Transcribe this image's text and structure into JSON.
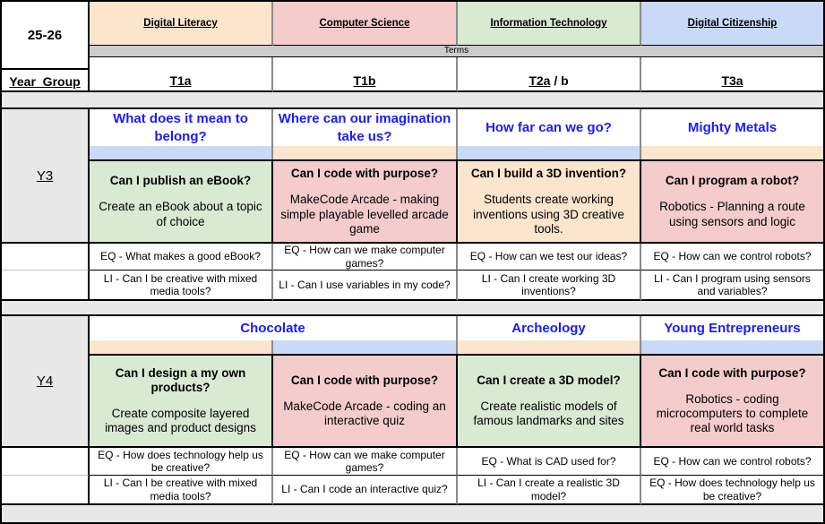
{
  "table": {
    "year_label": "25-26",
    "year_group_header": "Year  Group",
    "terms_header": "Terms",
    "colors": {
      "band_blue": "#C9DAF8",
      "band_peach": "#FCE5CD",
      "cell_green": "#D9EAD3",
      "cell_pink": "#F4CCCC",
      "cell_peach": "#FCE5CD",
      "terms_gray": "#CCCCCC",
      "label_gray": "#E8E8E8",
      "title_blue": "#1a1aff"
    },
    "subjects": [
      {
        "name": "Digital Literacy",
        "color": "#FCE5CD",
        "term_main": "T1a",
        "term_suffix": ""
      },
      {
        "name": "Computer Science",
        "color": "#F4CCCC",
        "term_main": "T1b",
        "term_suffix": ""
      },
      {
        "name": "Information Technology",
        "color": "#D9EAD3",
        "term_main": "T2a",
        "term_suffix": " / b"
      },
      {
        "name": "Digital Citizenship",
        "color": "#C9DAF8",
        "term_main": "T3a",
        "term_suffix": ""
      }
    ],
    "year_groups": [
      {
        "label": "Y3",
        "units": [
          {
            "title": "What does it mean to belong?",
            "band_color": "#C9DAF8",
            "cell_color": "#D9EAD3",
            "question": "Can I publish an eBook?",
            "description": "Create an eBook about a topic of choice",
            "eq": "EQ - What makes a good eBook?",
            "li": "LI - Can I be creative with mixed media tools?"
          },
          {
            "title": "Where can our imagination take us?",
            "band_color": "#FCE5CD",
            "cell_color": "#F4CCCC",
            "question": "Can I code with purpose?",
            "description": "MakeCode Arcade - making simple playable levelled arcade game",
            "eq": "EQ - How can we make computer games?",
            "li": "LI - Can I use variables in my code?"
          },
          {
            "title": "How far can we go?",
            "band_color": "#C9DAF8",
            "cell_color": "#FCE5CD",
            "question": "Can I build a 3D invention?",
            "description": "Students create working inventions using 3D creative tools.",
            "eq": "EQ - How can we test our ideas?",
            "li": "LI - Can I create working 3D inventions?"
          },
          {
            "title": "Mighty Metals",
            "band_color": "#FCE5CD",
            "cell_color": "#F4CCCC",
            "question": "Can I program a robot?",
            "description": "Robotics - Planning a route using sensors and logic",
            "eq": "EQ - How can we control robots?",
            "li": "LI - Can I program using sensors and variables?"
          }
        ]
      },
      {
        "label": "Y4",
        "title_spans": [
          {
            "title": "Chocolate",
            "span": 2
          },
          {
            "title": "Archeology",
            "span": 1
          },
          {
            "title": "Young Entrepreneurs",
            "span": 1
          }
        ],
        "units": [
          {
            "band_color": "#FCE5CD",
            "cell_color": "#D9EAD3",
            "question": "Can I design a my own products?",
            "description": "Create composite layered images and product designs",
            "eq": "EQ - How does technology help us be creative?",
            "li": "LI - Can I be creative with mixed media tools?"
          },
          {
            "band_color": "#C9DAF8",
            "cell_color": "#F4CCCC",
            "question": "Can I code with purpose?",
            "description": "MakeCode Arcade - coding an interactive quiz",
            "eq": "EQ - How can we make computer games?",
            "li": "LI - Can I code an interactive quiz?"
          },
          {
            "band_color": "#FCE5CD",
            "cell_color": "#D9EAD3",
            "question": "Can I create a 3D model?",
            "description": "Create realistic models of famous landmarks and sites",
            "eq": "EQ - What is CAD used for?",
            "li": "LI - Can I create a realistic 3D model?"
          },
          {
            "band_color": "#C9DAF8",
            "cell_color": "#F4CCCC",
            "question": "Can I code with purpose?",
            "description": "Robotics - coding microcomputers to complete real world tasks",
            "eq": "EQ - How can we control robots?",
            "li": "EQ - How does technology help us be creative?"
          }
        ]
      }
    ]
  }
}
